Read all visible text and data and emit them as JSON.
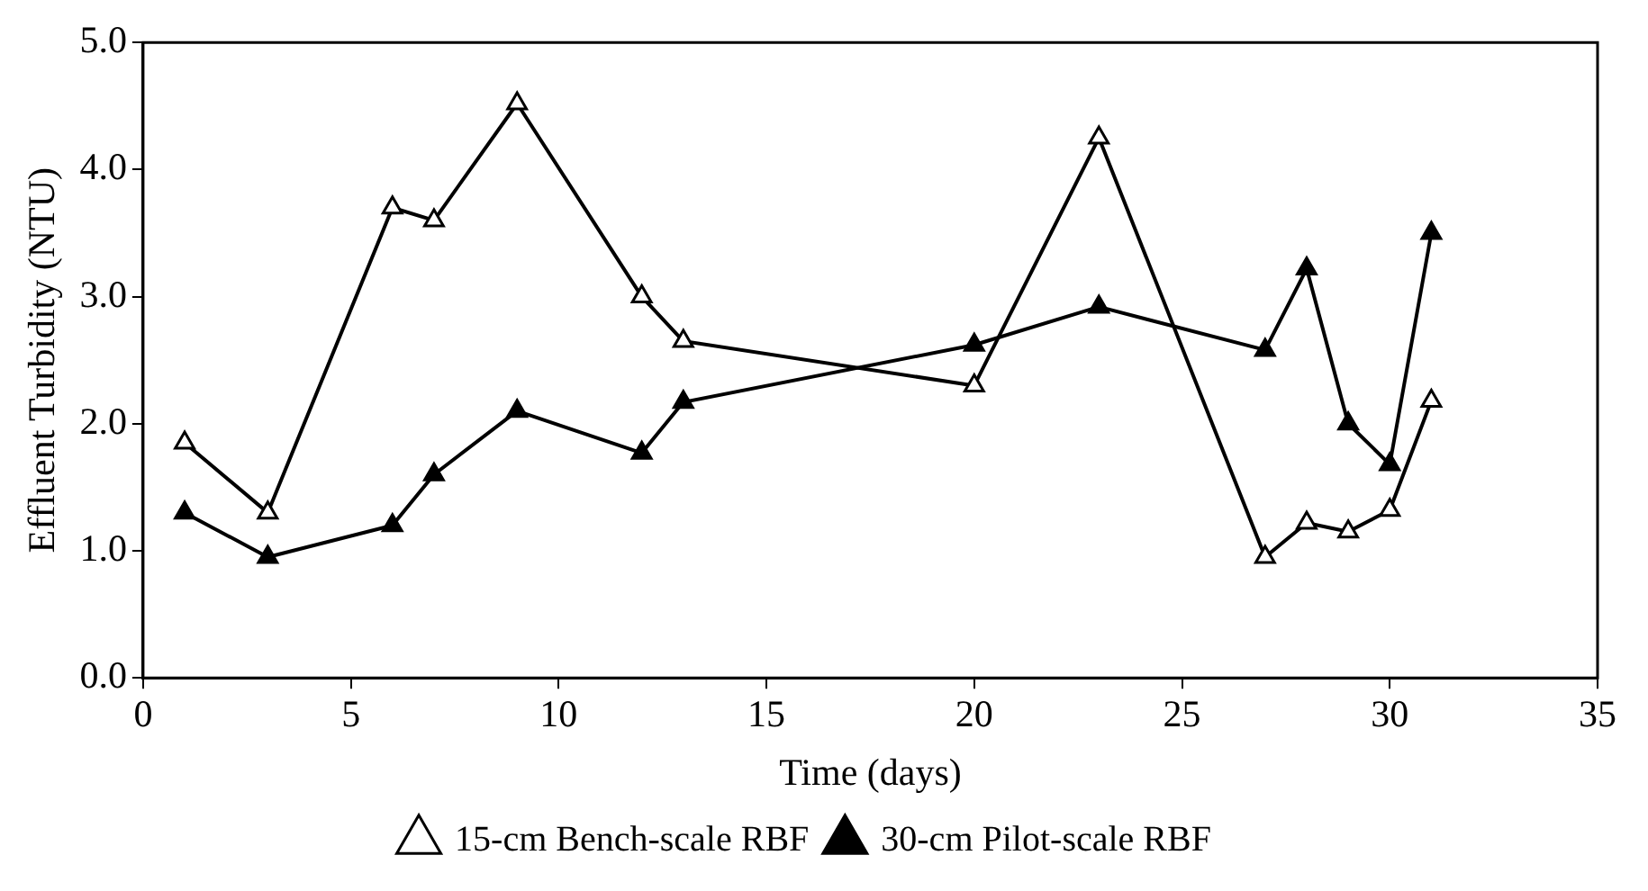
{
  "chart_data": {
    "type": "line",
    "xlabel": "Time (days)",
    "ylabel": "Effluent Turbidity (NTU)",
    "x": [
      1,
      3,
      6,
      7,
      9,
      12,
      13,
      20,
      23,
      27,
      28,
      29,
      30,
      31
    ],
    "series": [
      {
        "name": "15-cm Bench-scale RBF",
        "color": "#000000",
        "values": [
          1.85,
          1.3,
          3.7,
          3.6,
          4.52,
          3.0,
          2.65,
          2.3,
          4.25,
          0.95,
          1.22,
          1.15,
          1.32,
          2.18
        ]
      },
      {
        "name": "30-cm Pilot-scale RBF",
        "color": "#000000",
        "values": [
          1.3,
          0.95,
          1.2,
          1.6,
          2.1,
          1.77,
          2.17,
          2.62,
          2.92,
          2.58,
          3.22,
          2.0,
          1.68,
          3.5
        ]
      }
    ],
    "xlim": [
      0,
      35
    ],
    "xticks": [
      0,
      5,
      10,
      15,
      20,
      25,
      30,
      35
    ],
    "ylim": [
      0,
      5
    ],
    "yticks": [
      {
        "value": 0,
        "label": "0.0"
      },
      {
        "value": 1,
        "label": "1.0"
      },
      {
        "value": 2,
        "label": "2.0"
      },
      {
        "value": 3,
        "label": "3.0"
      },
      {
        "value": 4,
        "label": "4.0"
      },
      {
        "value": 5,
        "label": "5.0"
      }
    ],
    "grid": false,
    "legend": "bottom",
    "marker": "triangle",
    "line_style": "solid"
  }
}
